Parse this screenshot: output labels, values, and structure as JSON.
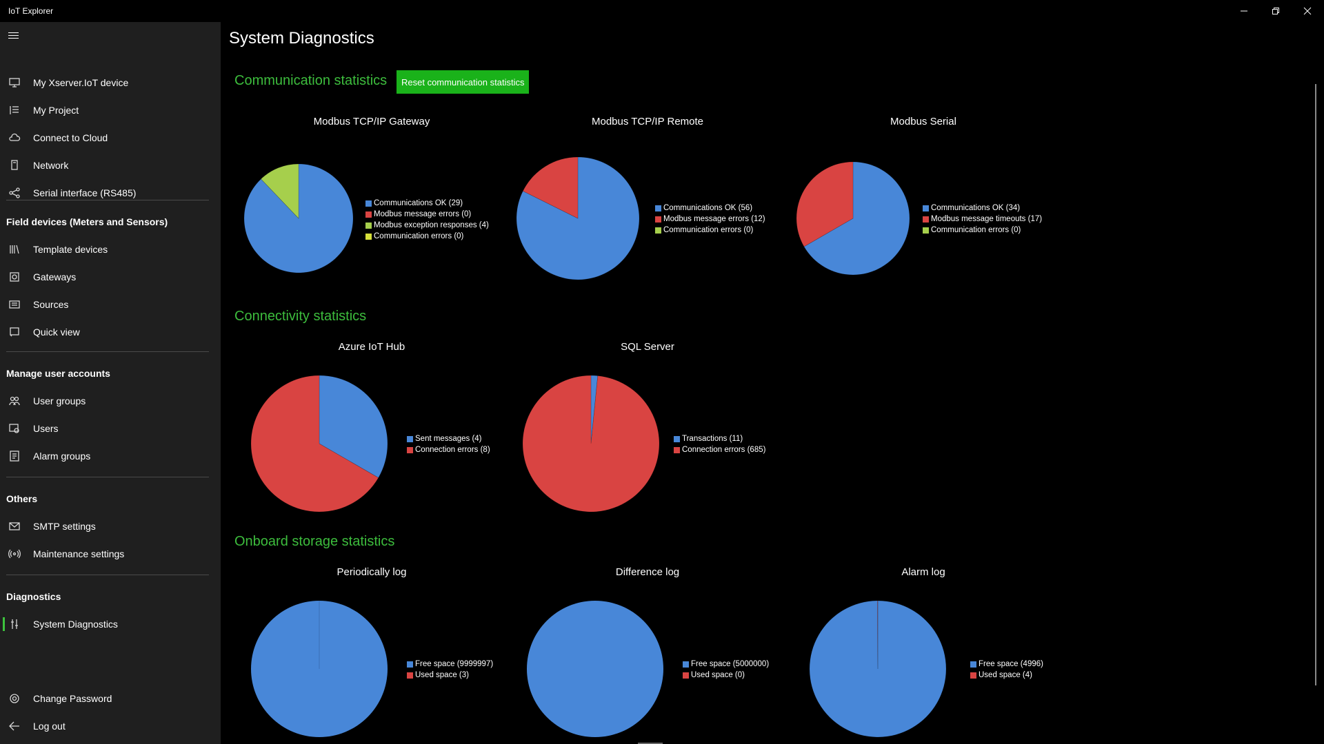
{
  "window": {
    "title": "IoT Explorer"
  },
  "sidebar": {
    "top_items": [
      {
        "label": "My Xserver.IoT device",
        "icon": "device-icon"
      },
      {
        "label": "My Project",
        "icon": "project-icon"
      },
      {
        "label": "Connect to Cloud",
        "icon": "cloud-icon"
      },
      {
        "label": "Network",
        "icon": "network-icon"
      },
      {
        "label": "Serial interface (RS485)",
        "icon": "share-icon"
      }
    ],
    "field_devices": {
      "heading": "Field devices (Meters and Sensors)",
      "items": [
        {
          "label": "Template devices",
          "icon": "library-icon"
        },
        {
          "label": "Gateways",
          "icon": "gateway-icon"
        },
        {
          "label": "Sources",
          "icon": "sources-icon"
        },
        {
          "label": "Quick view",
          "icon": "quick-view-icon"
        }
      ]
    },
    "user_accounts": {
      "heading": "Manage user accounts",
      "items": [
        {
          "label": "User groups",
          "icon": "user-groups-icon"
        },
        {
          "label": "Users",
          "icon": "users-icon"
        },
        {
          "label": "Alarm groups",
          "icon": "alarm-groups-icon"
        }
      ]
    },
    "others": {
      "heading": "Others",
      "items": [
        {
          "label": "SMTP settings",
          "icon": "mail-icon"
        },
        {
          "label": "Maintenance settings",
          "icon": "broadcast-icon"
        }
      ]
    },
    "diagnostics": {
      "heading": "Diagnostics",
      "items": [
        {
          "label": "System Diagnostics",
          "icon": "diagnostics-icon",
          "active": true
        }
      ]
    },
    "bottom_items": [
      {
        "label": "Change Password",
        "icon": "gear-icon"
      },
      {
        "label": "Log out",
        "icon": "back-arrow-icon"
      }
    ]
  },
  "main": {
    "page_title": "System Diagnostics",
    "reset_button": "Reset communication statistics",
    "sections": {
      "communication": "Communication statistics",
      "connectivity": "Connectivity statistics",
      "storage": "Onboard storage statistics"
    }
  },
  "colors": {
    "blue": "#4887d8",
    "red": "#d94442",
    "green": "#a6cf4c",
    "yellow": "#d6e03a",
    "accent_green": "#3dbd3d",
    "button_green": "#1ab21a"
  },
  "chart_data": [
    {
      "type": "pie",
      "title": "Modbus TCP/IP Gateway",
      "slices": [
        {
          "label": "Communications OK (29)",
          "value": 29,
          "color": "#4887d8"
        },
        {
          "label": "Modbus message errors (0)",
          "value": 0,
          "color": "#d94442"
        },
        {
          "label": "Modbus exception responses (4)",
          "value": 4,
          "color": "#a6cf4c"
        },
        {
          "label": "Communication errors (0)",
          "value": 0,
          "color": "#d6e03a"
        }
      ]
    },
    {
      "type": "pie",
      "title": "Modbus TCP/IP Remote",
      "slices": [
        {
          "label": "Communications OK (56)",
          "value": 56,
          "color": "#4887d8"
        },
        {
          "label": "Modbus message errors (12)",
          "value": 12,
          "color": "#d94442"
        },
        {
          "label": "Communication errors (0)",
          "value": 0,
          "color": "#a6cf4c"
        }
      ]
    },
    {
      "type": "pie",
      "title": "Modbus Serial",
      "slices": [
        {
          "label": "Communications OK (34)",
          "value": 34,
          "color": "#4887d8"
        },
        {
          "label": "Modbus message timeouts (17)",
          "value": 17,
          "color": "#d94442"
        },
        {
          "label": "Communication errors (0)",
          "value": 0,
          "color": "#a6cf4c"
        }
      ]
    },
    {
      "type": "pie",
      "title": "Azure IoT Hub",
      "slices": [
        {
          "label": "Sent messages (4)",
          "value": 4,
          "color": "#4887d8"
        },
        {
          "label": "Connection errors (8)",
          "value": 8,
          "color": "#d94442"
        }
      ]
    },
    {
      "type": "pie",
      "title": "SQL Server",
      "slices": [
        {
          "label": "Transactions (11)",
          "value": 11,
          "color": "#4887d8"
        },
        {
          "label": "Connection errors (685)",
          "value": 685,
          "color": "#d94442"
        }
      ]
    },
    {
      "type": "pie",
      "title": "Periodically log",
      "slices": [
        {
          "label": "Free space (9999997)",
          "value": 9999997,
          "color": "#4887d8"
        },
        {
          "label": "Used space (3)",
          "value": 3,
          "color": "#d94442"
        }
      ]
    },
    {
      "type": "pie",
      "title": "Difference log",
      "slices": [
        {
          "label": "Free space (5000000)",
          "value": 5000000,
          "color": "#4887d8"
        },
        {
          "label": "Used space (0)",
          "value": 0,
          "color": "#d94442"
        }
      ]
    },
    {
      "type": "pie",
      "title": "Alarm log",
      "slices": [
        {
          "label": "Free space (4996)",
          "value": 4996,
          "color": "#4887d8"
        },
        {
          "label": "Used space (4)",
          "value": 4,
          "color": "#d94442"
        }
      ]
    }
  ]
}
